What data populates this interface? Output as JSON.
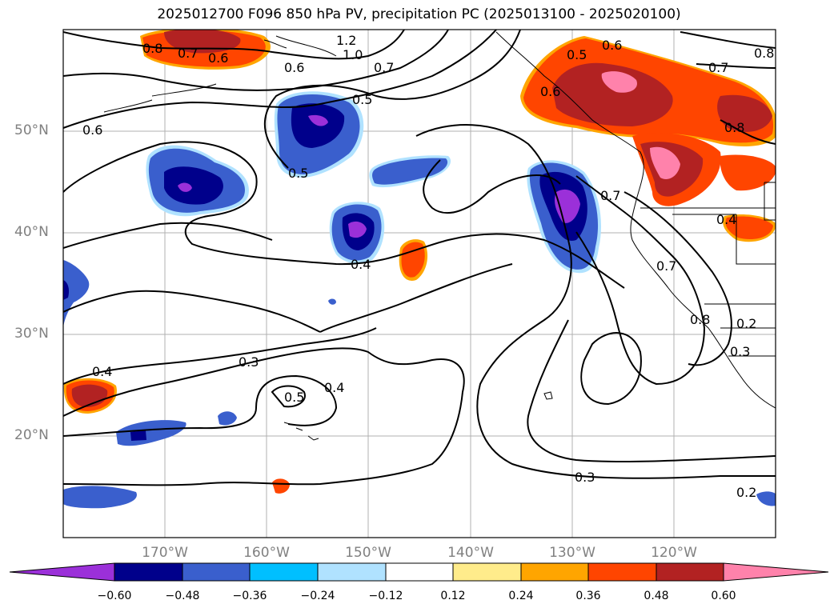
{
  "title": "2025012700 F096 850 hPa PV, precipitation PC (2025013100 - 2025020100)",
  "lat_labels": [
    "50°N",
    "40°N",
    "30°N",
    "20°N"
  ],
  "lon_labels": [
    "170°W",
    "160°W",
    "150°W",
    "140°W",
    "130°W",
    "120°W"
  ],
  "colorbar": {
    "ticks": [
      "−0.60",
      "−0.48",
      "−0.36",
      "−0.24",
      "−0.12",
      "0.12",
      "0.24",
      "0.36",
      "0.48",
      "0.60"
    ],
    "colors": [
      "#9b30d9",
      "#00008b",
      "#3a5fcd",
      "#00bfff",
      "#b0e2ff",
      "#ffffff",
      "#ffec8b",
      "#ffa500",
      "#ff4500",
      "#b22222",
      "#ff82ab"
    ]
  },
  "contour_labels": [
    "0.8",
    "0.7",
    "0.6",
    "1.2",
    "1.0",
    "0.6",
    "0.7",
    "0.5",
    "0.6",
    "0.5",
    "0.5",
    "0.6",
    "0.7",
    "0.8",
    "0.6",
    "0.8",
    "0.7",
    "0.4",
    "0.7",
    "0.8",
    "0.2",
    "0.3",
    "0.4",
    "0.3",
    "0.5",
    "0.4",
    "0.3",
    "0.2"
  ],
  "map": {
    "lat_range": [
      10,
      60
    ],
    "lon_range": [
      -180,
      -110
    ]
  }
}
